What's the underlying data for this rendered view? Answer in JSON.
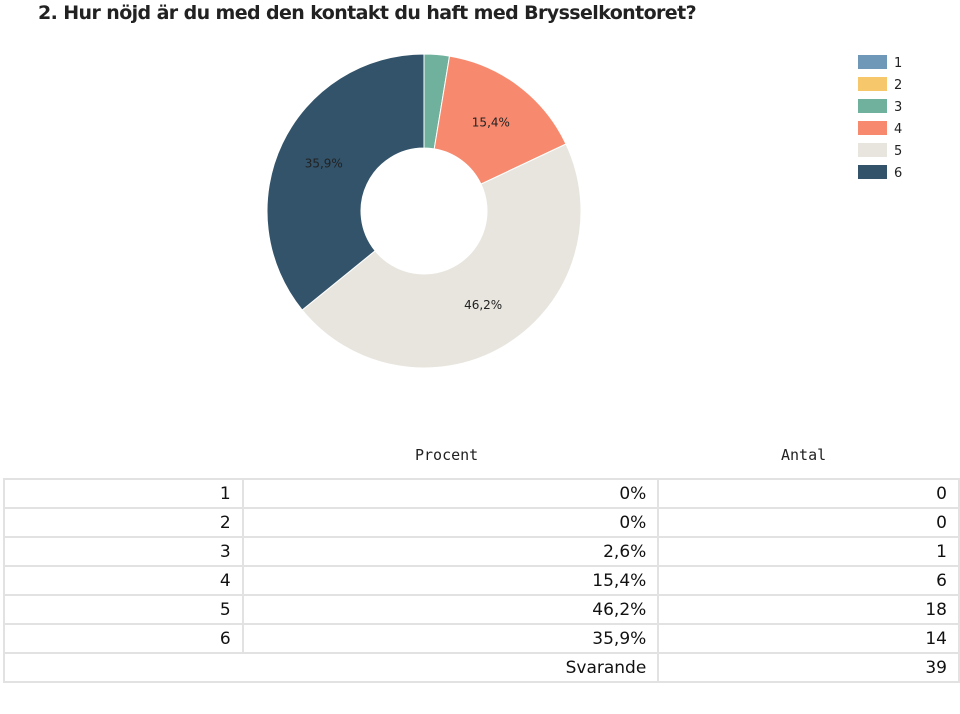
{
  "title": "2. Hur nöjd är du med den kontakt du haft med Brysselkontoret?",
  "colors": {
    "1": "#6f97b8",
    "2": "#f7c86b",
    "3": "#6fb19d",
    "4": "#f78a6e",
    "5": "#e8e5de",
    "6": "#32536a"
  },
  "chart_data": {
    "type": "pie",
    "variant": "donut",
    "categories": [
      "1",
      "2",
      "3",
      "4",
      "5",
      "6"
    ],
    "values": [
      0,
      0,
      2.6,
      15.4,
      46.2,
      35.9
    ],
    "labels": [
      "",
      "",
      "",
      "15,4%",
      "46,2%",
      "35,9%"
    ],
    "legend": [
      "1",
      "2",
      "3",
      "4",
      "5",
      "6"
    ],
    "legend_placement": "top-right"
  },
  "table": {
    "headers": [
      "Procent",
      "Antal"
    ],
    "rows": [
      {
        "label": "1",
        "percent": "0%",
        "count": "0"
      },
      {
        "label": "2",
        "percent": "0%",
        "count": "0"
      },
      {
        "label": "3",
        "percent": "2,6%",
        "count": "1"
      },
      {
        "label": "4",
        "percent": "15,4%",
        "count": "6"
      },
      {
        "label": "5",
        "percent": "46,2%",
        "count": "18"
      },
      {
        "label": "6",
        "percent": "35,9%",
        "count": "14"
      }
    ],
    "footer": {
      "label": "Svarande",
      "count": "39"
    }
  }
}
